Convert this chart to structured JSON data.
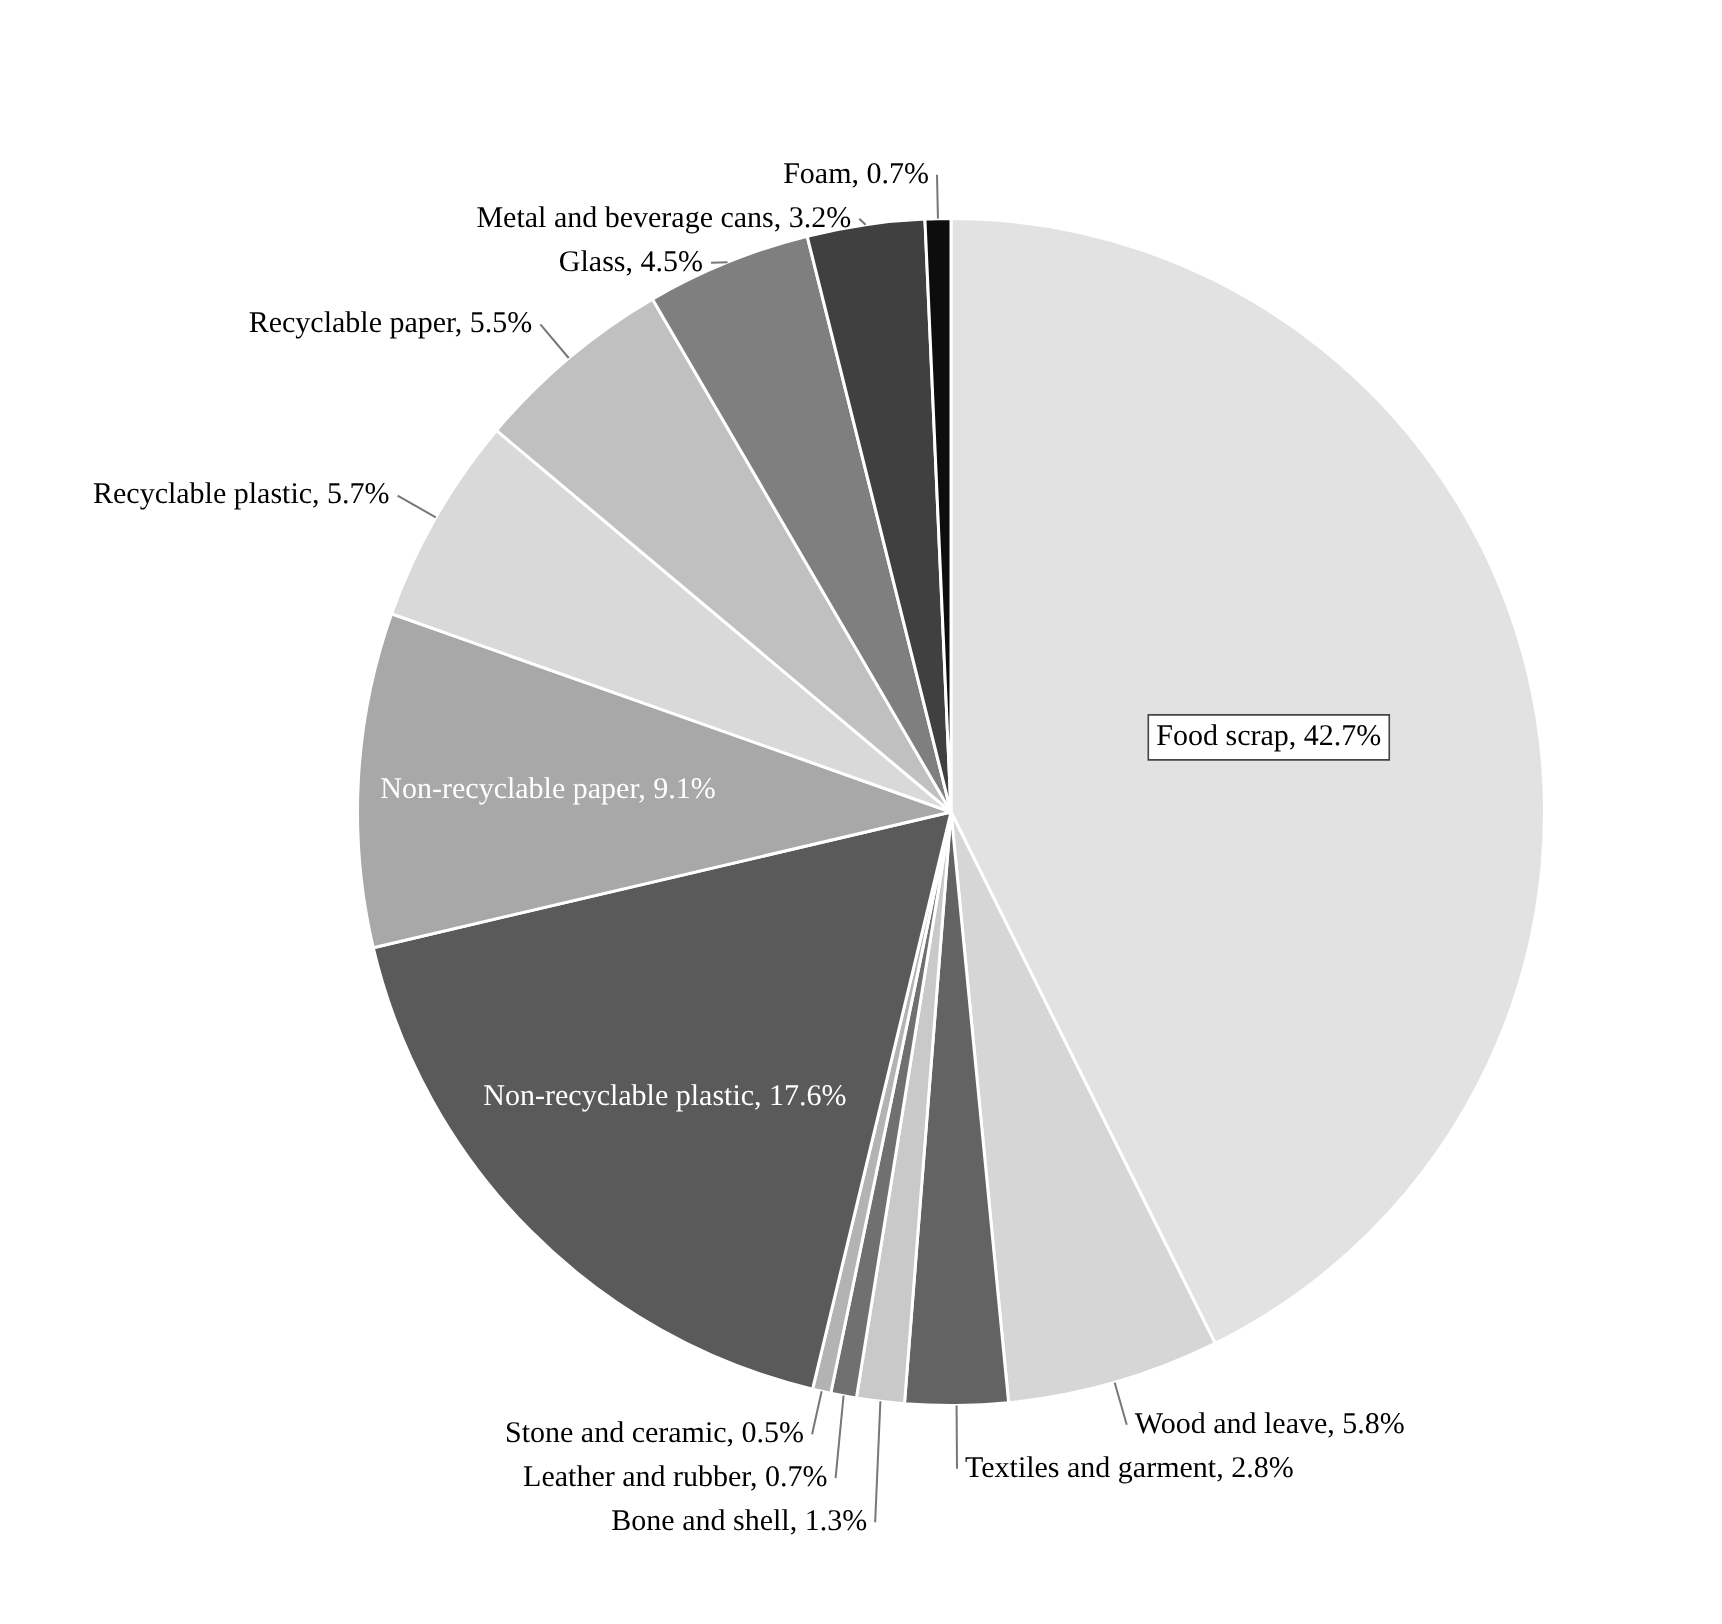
{
  "chart_data": {
    "type": "pie",
    "categories": [
      "Food scrap",
      "Wood and leave",
      "Textiles and garment",
      "Bone and shell",
      "Leather and rubber",
      "Stone and ceramic",
      "Non-recyclable plastic",
      "Non-recyclable paper",
      "Recyclable plastic",
      "Recyclable paper",
      "Glass",
      "Metal and beverage cans",
      "Foam"
    ],
    "values": [
      42.7,
      5.8,
      2.8,
      1.3,
      0.7,
      0.5,
      17.6,
      9.1,
      5.7,
      5.5,
      4.5,
      3.2,
      0.7
    ],
    "value_labels": [
      "42.7%",
      "5.8%",
      "2.8%",
      "1.3%",
      "0.7%",
      "0.5%",
      "17.6%",
      "9.1%",
      "5.7%",
      "5.5%",
      "4.5%",
      "3.2%",
      "0.7%"
    ],
    "colors": [
      "#e2e2e2",
      "#d6d6d6",
      "#636363",
      "#c9c9c9",
      "#707070",
      "#b3b3b3",
      "#5a5a5a",
      "#a8a8a8",
      "#d9d9d9",
      "#c0c0c0",
      "#7f7f7f",
      "#404040",
      "#0d0d0d"
    ],
    "legend": false
  }
}
